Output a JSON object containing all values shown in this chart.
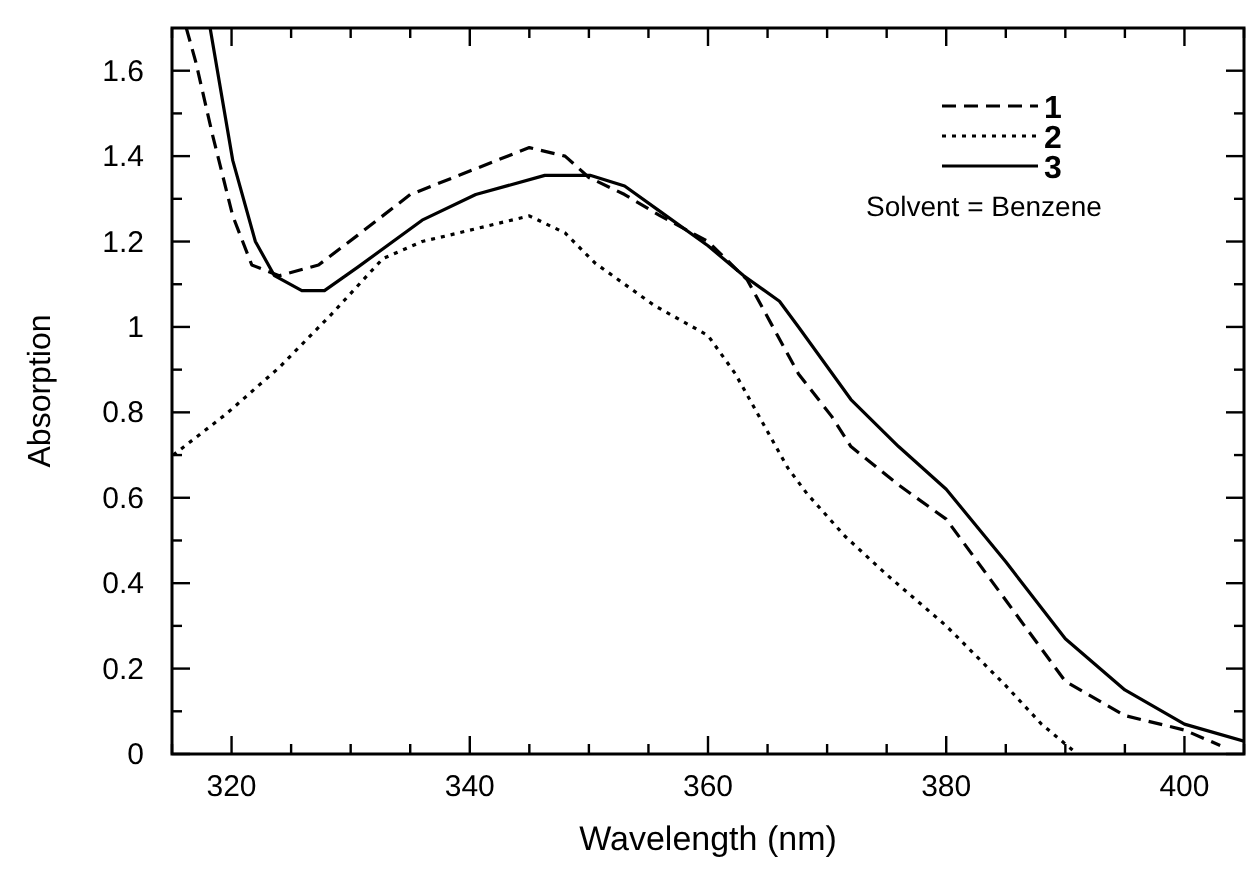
{
  "chart_data": {
    "type": "line",
    "xlabel": "Wavelength (nm)",
    "ylabel": "Absorption",
    "xlim": [
      315,
      405
    ],
    "ylim": [
      0,
      1.7
    ],
    "xticks": [
      {
        "value": 315,
        "label": null
      },
      320,
      {
        "value": 325,
        "label": null
      },
      {
        "value": 330,
        "label": null
      },
      {
        "value": 335,
        "label": null
      },
      340,
      {
        "value": 345,
        "label": null
      },
      {
        "value": 350,
        "label": null
      },
      {
        "value": 355,
        "label": null
      },
      360,
      {
        "value": 365,
        "label": null
      },
      {
        "value": 370,
        "label": null
      },
      {
        "value": 375,
        "label": null
      },
      380,
      {
        "value": 385,
        "label": null
      },
      {
        "value": 390,
        "label": null
      },
      {
        "value": 395,
        "label": null
      },
      400,
      {
        "value": 405,
        "label": null
      }
    ],
    "yticks": [
      0,
      {
        "value": 0.1,
        "label": null
      },
      0.2,
      {
        "value": 0.3,
        "label": null
      },
      0.4,
      {
        "value": 0.5,
        "label": null
      },
      0.6,
      {
        "value": 0.7,
        "label": null
      },
      0.8,
      {
        "value": 0.9,
        "label": null
      },
      1,
      {
        "value": 1.1,
        "label": null
      },
      1.2,
      {
        "value": 1.3,
        "label": null
      },
      1.4,
      {
        "value": 1.5,
        "label": null
      },
      1.6
    ],
    "grid": false,
    "legend": "top right",
    "marker": "none",
    "annotations": [
      "Solvent = Benzene"
    ],
    "series": [
      {
        "name": "1",
        "color": "#000000",
        "line_style": "dashed",
        "x": [
          316.2,
          317,
          318.4,
          320.1,
          321.7,
          324,
          327.3,
          330.6,
          335,
          340,
          345,
          348,
          350,
          353,
          356,
          360,
          363.3,
          367.6,
          370.4,
          372,
          376,
          380,
          385,
          390,
          395,
          400,
          403
        ],
        "values": [
          1.7,
          1.62,
          1.45,
          1.26,
          1.145,
          1.12,
          1.145,
          1.215,
          1.31,
          1.365,
          1.42,
          1.4,
          1.35,
          1.31,
          1.26,
          1.2,
          1.11,
          0.89,
          0.79,
          0.72,
          0.63,
          0.55,
          0.36,
          0.17,
          0.09,
          0.056,
          0.02
        ]
      },
      {
        "name": "2",
        "color": "#000000",
        "line_style": "dotted",
        "x": [
          315.1,
          319.5,
          324,
          328.4,
          332.7,
          336,
          338.3,
          342,
          345,
          348,
          350.5,
          355.5,
          360,
          362.3,
          366.7,
          368.3,
          371.5,
          375,
          380,
          385,
          388,
          391
        ],
        "values": [
          0.7,
          0.795,
          0.905,
          1.03,
          1.16,
          1.2,
          1.215,
          1.24,
          1.26,
          1.22,
          1.15,
          1.05,
          0.98,
          0.89,
          0.67,
          0.61,
          0.51,
          0.42,
          0.3,
          0.16,
          0.07,
          0
        ]
      },
      {
        "name": "3",
        "color": "#000000",
        "line_style": "solid",
        "x": [
          318.2,
          320.1,
          322,
          323.6,
          325.9,
          327.8,
          330.6,
          336,
          340.5,
          346.3,
          350.1,
          353,
          356,
          360,
          363,
          366,
          367.6,
          372,
          376,
          380,
          385,
          390,
          395,
          400,
          405
        ],
        "values": [
          1.7,
          1.39,
          1.2,
          1.12,
          1.085,
          1.085,
          1.14,
          1.25,
          1.31,
          1.355,
          1.355,
          1.33,
          1.27,
          1.19,
          1.12,
          1.06,
          1.0,
          0.83,
          0.72,
          0.62,
          0.45,
          0.27,
          0.15,
          0.07,
          0.03
        ]
      }
    ]
  }
}
